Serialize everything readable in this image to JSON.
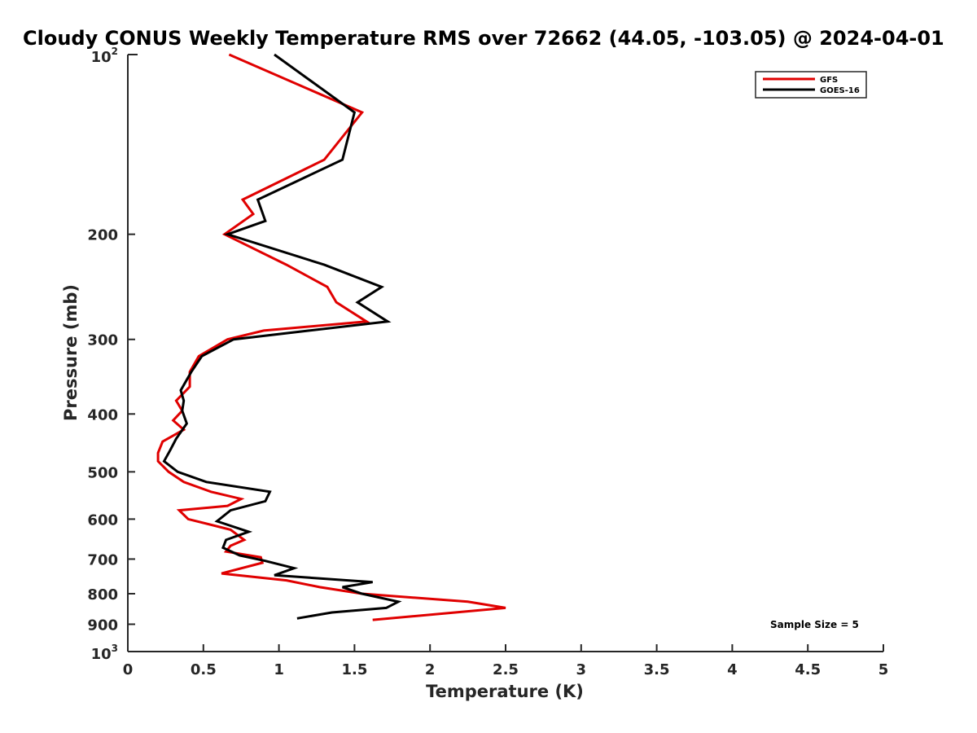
{
  "chart_data": {
    "type": "line",
    "title": "Cloudy CONUS Weekly Temperature RMS over 72662 (44.05, -103.05) @ 2024-04-01",
    "xlabel": "Temperature (K)",
    "ylabel": "Pressure (mb)",
    "xlim": [
      0,
      5
    ],
    "ylim": [
      100,
      1000
    ],
    "y_scale": "log",
    "y_reversed": true,
    "x_ticks": [
      0,
      0.5,
      1,
      1.5,
      2,
      2.5,
      3,
      3.5,
      4,
      4.5,
      5
    ],
    "x_tick_labels": [
      "0",
      "0.5",
      "1",
      "1.5",
      "2",
      "2.5",
      "3",
      "3.5",
      "4",
      "4.5",
      "5"
    ],
    "y_ticks": [
      200,
      300,
      400,
      500,
      600,
      700,
      800,
      900
    ],
    "y_tick_labels": [
      "200",
      "300",
      "400",
      "500",
      "600",
      "700",
      "800",
      "900"
    ],
    "y_decade_ticks": [
      {
        "value": 100,
        "base": "10",
        "exp": "2"
      },
      {
        "value": 1000,
        "base": "10",
        "exp": "3"
      }
    ],
    "grid": false,
    "legend_position": "top-right",
    "annotation": "Sample Size = 5",
    "series": [
      {
        "name": "GFS",
        "color": "#e00000",
        "points": [
          [
            0.67,
            100
          ],
          [
            1.55,
            125
          ],
          [
            1.3,
            150
          ],
          [
            0.76,
            175
          ],
          [
            0.83,
            185
          ],
          [
            0.64,
            200
          ],
          [
            1.05,
            225
          ],
          [
            1.32,
            245
          ],
          [
            1.38,
            260
          ],
          [
            1.58,
            280
          ],
          [
            0.9,
            290
          ],
          [
            0.66,
            300
          ],
          [
            0.47,
            320
          ],
          [
            0.41,
            340
          ],
          [
            0.41,
            360
          ],
          [
            0.32,
            380
          ],
          [
            0.36,
            395
          ],
          [
            0.3,
            410
          ],
          [
            0.37,
            425
          ],
          [
            0.23,
            445
          ],
          [
            0.2,
            465
          ],
          [
            0.2,
            480
          ],
          [
            0.27,
            500
          ],
          [
            0.37,
            520
          ],
          [
            0.55,
            540
          ],
          [
            0.75,
            555
          ],
          [
            0.66,
            570
          ],
          [
            0.34,
            580
          ],
          [
            0.4,
            600
          ],
          [
            0.68,
            625
          ],
          [
            0.77,
            650
          ],
          [
            0.68,
            665
          ],
          [
            0.65,
            680
          ],
          [
            0.88,
            695
          ],
          [
            0.89,
            710
          ],
          [
            0.62,
            740
          ],
          [
            1.05,
            760
          ],
          [
            1.27,
            780
          ],
          [
            1.55,
            800
          ],
          [
            2.25,
            825
          ],
          [
            2.5,
            845
          ],
          [
            1.62,
            885
          ]
        ]
      },
      {
        "name": "GOES-16",
        "color": "#000000",
        "points": [
          [
            0.97,
            100
          ],
          [
            1.5,
            125
          ],
          [
            1.42,
            150
          ],
          [
            0.86,
            175
          ],
          [
            0.91,
            190
          ],
          [
            0.66,
            200
          ],
          [
            1.3,
            225
          ],
          [
            1.68,
            245
          ],
          [
            1.52,
            260
          ],
          [
            1.72,
            280
          ],
          [
            1.2,
            290
          ],
          [
            0.7,
            300
          ],
          [
            0.49,
            320
          ],
          [
            0.42,
            340
          ],
          [
            0.35,
            365
          ],
          [
            0.37,
            380
          ],
          [
            0.36,
            395
          ],
          [
            0.39,
            415
          ],
          [
            0.32,
            440
          ],
          [
            0.28,
            460
          ],
          [
            0.24,
            480
          ],
          [
            0.33,
            500
          ],
          [
            0.52,
            520
          ],
          [
            0.94,
            540
          ],
          [
            0.91,
            560
          ],
          [
            0.68,
            580
          ],
          [
            0.59,
            605
          ],
          [
            0.8,
            630
          ],
          [
            0.65,
            650
          ],
          [
            0.63,
            670
          ],
          [
            0.74,
            690
          ],
          [
            0.91,
            705
          ],
          [
            1.1,
            725
          ],
          [
            0.97,
            745
          ],
          [
            1.62,
            765
          ],
          [
            1.42,
            780
          ],
          [
            1.55,
            800
          ],
          [
            1.79,
            825
          ],
          [
            1.71,
            845
          ],
          [
            1.35,
            860
          ],
          [
            1.12,
            880
          ]
        ]
      }
    ]
  }
}
